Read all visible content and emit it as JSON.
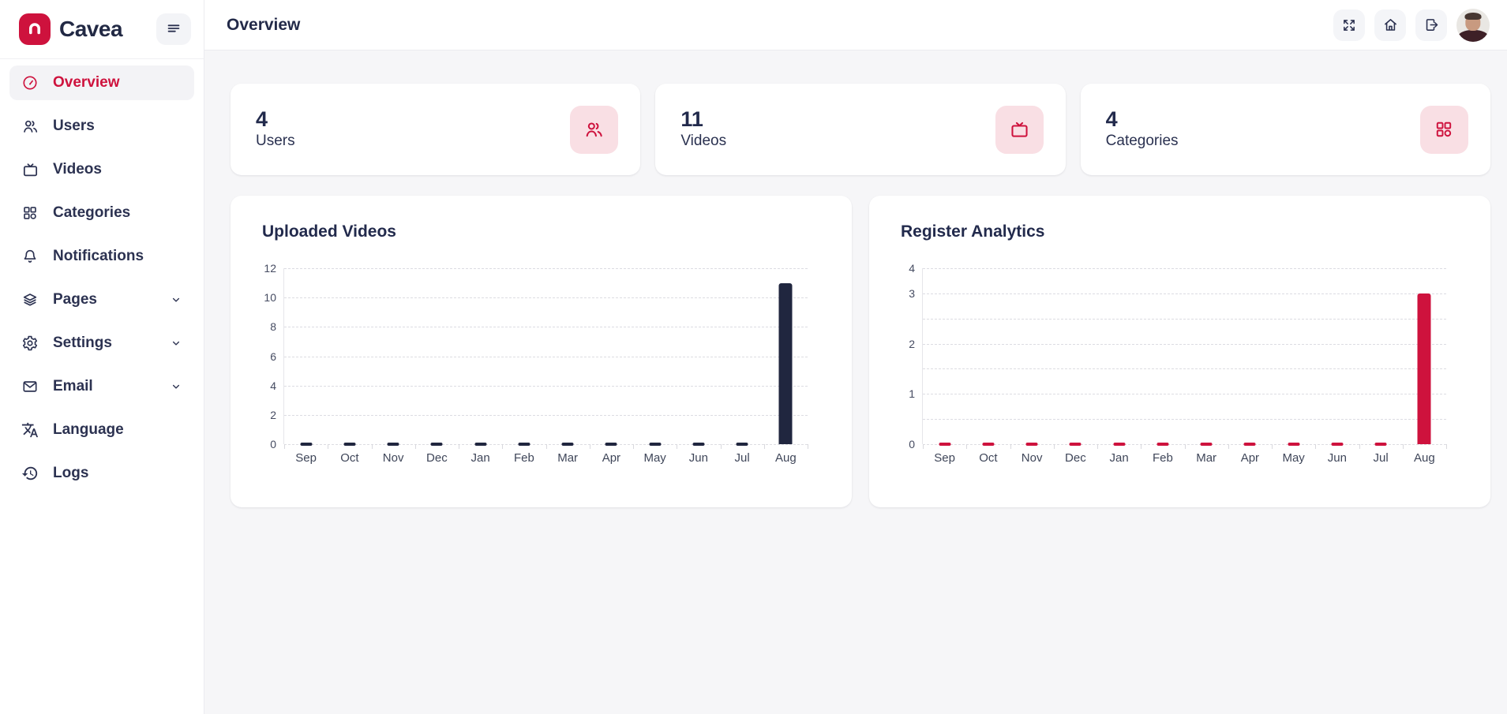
{
  "brand": {
    "name": "Cavea"
  },
  "colors": {
    "accent": "#ce123d",
    "accent_soft": "#f9dfe4",
    "navy_text": "#232a4c",
    "bar_navy": "#20263f",
    "bar_red": "#ce123d"
  },
  "header": {
    "title": "Overview",
    "actions": [
      {
        "icon": "fullscreen-icon"
      },
      {
        "icon": "home-icon"
      },
      {
        "icon": "logout-icon"
      }
    ]
  },
  "sidebar": {
    "items": [
      {
        "label": "Overview",
        "icon": "gauge-icon",
        "active": true,
        "chevron": false
      },
      {
        "label": "Users",
        "icon": "users-icon",
        "active": false,
        "chevron": false
      },
      {
        "label": "Videos",
        "icon": "tv-icon",
        "active": false,
        "chevron": false
      },
      {
        "label": "Categories",
        "icon": "grid-icon",
        "active": false,
        "chevron": false
      },
      {
        "label": "Notifications",
        "icon": "bell-icon",
        "active": false,
        "chevron": false
      },
      {
        "label": "Pages",
        "icon": "layers-icon",
        "active": false,
        "chevron": true
      },
      {
        "label": "Settings",
        "icon": "gear-icon",
        "active": false,
        "chevron": true
      },
      {
        "label": "Email",
        "icon": "mail-icon",
        "active": false,
        "chevron": true
      },
      {
        "label": "Language",
        "icon": "translate-icon",
        "active": false,
        "chevron": false
      },
      {
        "label": "Logs",
        "icon": "history-icon",
        "active": false,
        "chevron": false
      }
    ]
  },
  "stats": [
    {
      "value": "4",
      "label": "Users",
      "icon": "users-icon"
    },
    {
      "value": "11",
      "label": "Videos",
      "icon": "tv-icon"
    },
    {
      "value": "4",
      "label": "Categories",
      "icon": "grid-icon"
    }
  ],
  "chart_data": [
    {
      "type": "bar",
      "title": "Uploaded Videos",
      "categories": [
        "Sep",
        "Oct",
        "Nov",
        "Dec",
        "Jan",
        "Feb",
        "Mar",
        "Apr",
        "May",
        "Jun",
        "Jul",
        "Aug"
      ],
      "values": [
        0,
        0,
        0,
        0,
        0,
        0,
        0,
        0,
        0,
        0,
        0,
        11
      ],
      "bar_color": "#20263f",
      "xlabel": "",
      "ylabel": "",
      "ylim": [
        0,
        12
      ],
      "grid": "dashed",
      "legend": false,
      "gridlines": [
        {
          "value": 12,
          "label": "12"
        },
        {
          "value": 10,
          "label": "10"
        },
        {
          "value": 8,
          "label": "8"
        },
        {
          "value": 6,
          "label": "6"
        },
        {
          "value": 4,
          "label": "4"
        },
        {
          "value": 2,
          "label": "2"
        },
        {
          "value": 0,
          "label": "0"
        }
      ]
    },
    {
      "type": "bar",
      "title": "Register Analytics",
      "categories": [
        "Sep",
        "Oct",
        "Nov",
        "Dec",
        "Jan",
        "Feb",
        "Mar",
        "Apr",
        "May",
        "Jun",
        "Jul",
        "Aug"
      ],
      "values": [
        0,
        0,
        0,
        0,
        0,
        0,
        0,
        0,
        0,
        0,
        0,
        3
      ],
      "bar_color": "#ce123d",
      "xlabel": "",
      "ylabel": "",
      "ylim": [
        0,
        4
      ],
      "grid": "dashed",
      "legend": false,
      "gridlines": [
        {
          "value": 4,
          "label": "4"
        },
        {
          "value": 3,
          "label": "3"
        },
        {
          "value": 2.5,
          "label": ""
        },
        {
          "value": 2,
          "label": "2"
        },
        {
          "value": 1.5,
          "label": ""
        },
        {
          "value": 1,
          "label": "1"
        },
        {
          "value": 0.5,
          "label": ""
        },
        {
          "value": 0,
          "label": "0"
        }
      ]
    }
  ]
}
